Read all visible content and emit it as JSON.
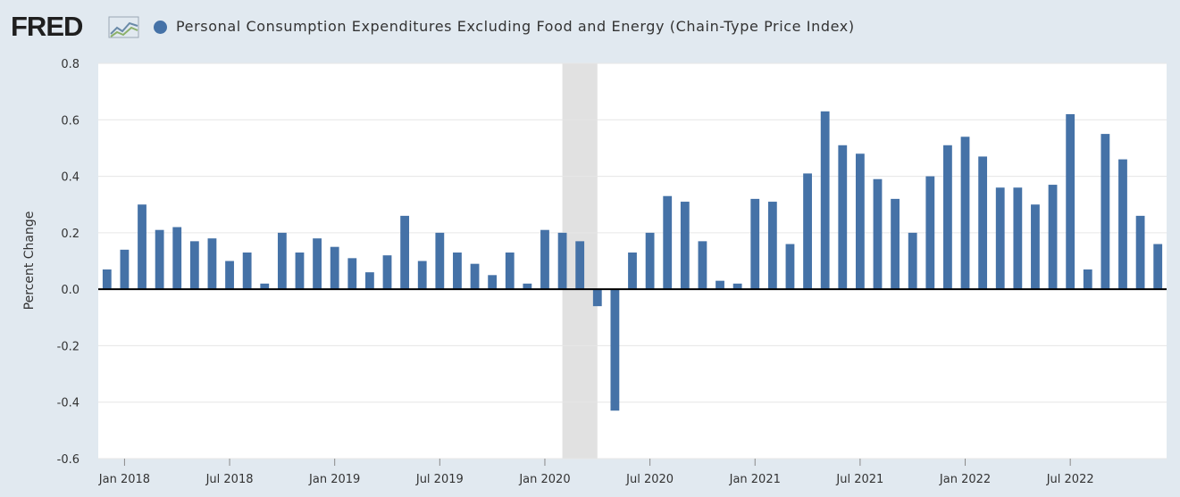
{
  "header": {
    "logo_text": "FRED",
    "logo_icon": "line-chart-icon",
    "legend_label": "Personal Consumption Expenditures Excluding Food and Energy (Chain-Type Price Index)"
  },
  "colors": {
    "series": "#4572a7",
    "recession": "#e1e1e1",
    "grid": "#e6e6e6",
    "zero_line": "#000000",
    "background": "#e1e9f0",
    "plot_background": "#ffffff"
  },
  "chart_data": {
    "type": "bar",
    "title": "Personal Consumption Expenditures Excluding Food and Energy (Chain-Type Price Index)",
    "xlabel": "",
    "ylabel": "Percent Change",
    "ylim": [
      -0.6,
      0.8
    ],
    "yticks": [
      "0.8",
      "0.6",
      "0.4",
      "0.2",
      "0.0",
      "-0.2",
      "-0.4",
      "-0.6"
    ],
    "grid": true,
    "legend": "top-left",
    "x_start": "Dec 2017",
    "xtick_labels": [
      {
        "label": "Jan 2018",
        "index": 1
      },
      {
        "label": "Jul 2018",
        "index": 7
      },
      {
        "label": "Jan 2019",
        "index": 13
      },
      {
        "label": "Jul 2019",
        "index": 19
      },
      {
        "label": "Jan 2020",
        "index": 25
      },
      {
        "label": "Jul 2020",
        "index": 31
      },
      {
        "label": "Jan 2021",
        "index": 37
      },
      {
        "label": "Jul 2021",
        "index": 43
      },
      {
        "label": "Jan 2022",
        "index": 49
      },
      {
        "label": "Jul 2022",
        "index": 55
      }
    ],
    "recession": {
      "start": "Feb 2020",
      "end": "Apr 2020",
      "start_index": 26.5,
      "end_index": 28.5
    },
    "series": [
      {
        "name": "Personal Consumption Expenditures Excluding Food and Energy (Chain-Type Price Index)",
        "values": [
          0.07,
          0.14,
          0.3,
          0.21,
          0.22,
          0.17,
          0.18,
          0.1,
          0.13,
          0.02,
          0.2,
          0.13,
          0.18,
          0.15,
          0.11,
          0.06,
          0.12,
          0.26,
          0.1,
          0.2,
          0.13,
          0.09,
          0.05,
          0.13,
          0.02,
          0.21,
          0.2,
          0.17,
          -0.06,
          -0.43,
          0.13,
          0.2,
          0.33,
          0.31,
          0.17,
          0.03,
          0.02,
          0.32,
          0.31,
          0.16,
          0.41,
          0.63,
          0.51,
          0.48,
          0.39,
          0.32,
          0.2,
          0.4,
          0.51,
          0.54,
          0.47,
          0.36,
          0.36,
          0.3,
          0.37,
          0.62,
          0.07,
          0.55,
          0.46,
          0.26,
          0.16
        ]
      }
    ]
  }
}
